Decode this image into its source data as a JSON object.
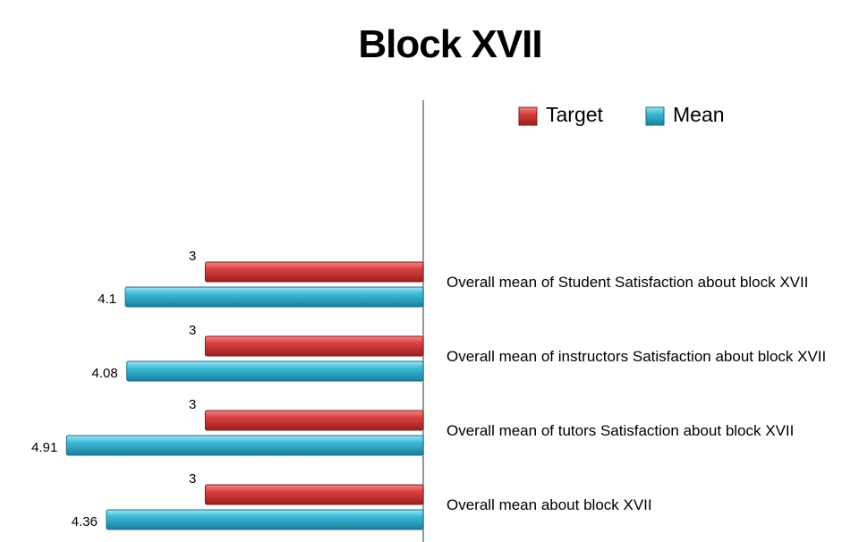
{
  "chart_data": {
    "type": "bar",
    "orientation": "horizontal",
    "title": "Block XVII",
    "categories": [
      "Overall mean of Student Satisfaction about block XVII",
      "Overall mean of instructors Satisfaction about block XVII",
      "Overall mean of tutors  Satisfaction about block XVII",
      "Overall mean about block XVII"
    ],
    "series": [
      {
        "name": "Target",
        "values": [
          3,
          3,
          3,
          3
        ],
        "color": "#d63b3b"
      },
      {
        "name": "Mean",
        "values": [
          4.1,
          4.08,
          4.91,
          4.36
        ],
        "color": "#3ab6d6"
      }
    ],
    "data_labels": {
      "Target": [
        "3",
        "3",
        "3",
        "3"
      ],
      "Mean": [
        "4.1",
        "4.08",
        "4.91",
        "4.36"
      ]
    },
    "xlim": [
      0,
      5.8
    ],
    "x_axis_reversed": true,
    "legend_position": "top-right",
    "grid": false
  }
}
